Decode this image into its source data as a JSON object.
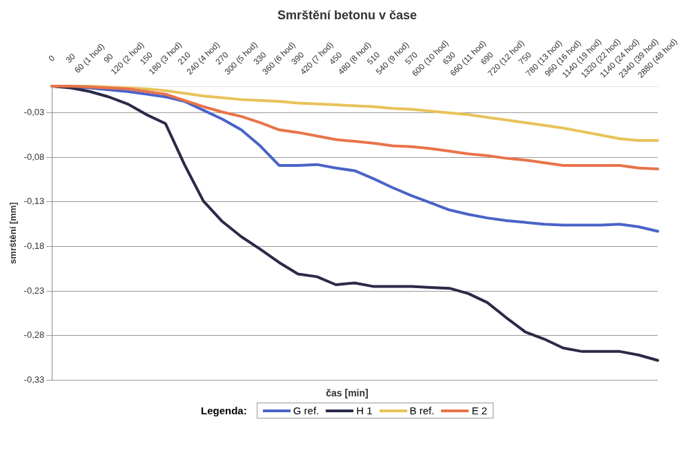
{
  "chart_data": {
    "type": "line",
    "title": "Smrštění betonu v čase",
    "xlabel": "čas [min]",
    "ylabel": "smrštění [mm]",
    "legend_title": "Legenda:",
    "categories": [
      "0",
      "30",
      "60 (1 hod)",
      "90",
      "120 (2 hod)",
      "150",
      "180 (3 hod)",
      "210",
      "240 (4 hod)",
      "270",
      "300 (5 hod)",
      "330",
      "360 (6 hod)",
      "390",
      "420 (7 hod)",
      "450",
      "480 (8 hod)",
      "510",
      "540 (9 hod)",
      "570",
      "600 (10 hod)",
      "630",
      "660 (11 hod)",
      "690",
      "720 (12 hod)",
      "750",
      "780 (13 hod)",
      "960 (16 hod)",
      "1140 (19 hod)",
      "1320 (22 hod)",
      "1140 (24 hod)",
      "2340 (39 hod)",
      "2880 (48 hod)"
    ],
    "series": [
      {
        "name": "G ref.",
        "color": "#4a63c8",
        "values": [
          0,
          -0.001,
          -0.002,
          -0.004,
          -0.006,
          -0.009,
          -0.012,
          -0.017,
          -0.027,
          -0.037,
          -0.049,
          -0.067,
          -0.089,
          -0.089,
          -0.088,
          -0.092,
          -0.095,
          -0.104,
          -0.114,
          -0.123,
          -0.131,
          -0.139,
          -0.144,
          -0.148,
          -0.151,
          -0.153,
          -0.155,
          -0.156,
          -0.156,
          -0.156,
          -0.155,
          -0.158,
          -0.163
        ]
      },
      {
        "name": "H 1",
        "color": "#2a2a48",
        "values": [
          0,
          -0.002,
          -0.006,
          -0.012,
          -0.02,
          -0.032,
          -0.042,
          -0.088,
          -0.129,
          -0.152,
          -0.169,
          -0.183,
          -0.198,
          -0.211,
          -0.214,
          -0.223,
          -0.221,
          -0.225,
          -0.225,
          -0.225,
          -0.226,
          -0.227,
          -0.233,
          -0.243,
          -0.26,
          -0.276,
          -0.284,
          -0.294,
          -0.298,
          -0.298,
          -0.298,
          -0.302,
          -0.308
        ]
      },
      {
        "name": "B ref.",
        "color": "#e8c25a",
        "values": [
          0,
          0,
          0,
          -0.001,
          -0.002,
          -0.003,
          -0.005,
          -0.008,
          -0.011,
          -0.013,
          -0.015,
          -0.016,
          -0.017,
          -0.019,
          -0.02,
          -0.021,
          -0.022,
          -0.023,
          -0.025,
          -0.026,
          -0.028,
          -0.03,
          -0.032,
          -0.035,
          -0.038,
          -0.041,
          -0.044,
          -0.047,
          -0.051,
          -0.055,
          -0.059,
          -0.061,
          -0.061
        ]
      },
      {
        "name": "E 2",
        "color": "#e8734a",
        "values": [
          0,
          0,
          -0.001,
          -0.002,
          -0.003,
          -0.006,
          -0.009,
          -0.016,
          -0.023,
          -0.029,
          -0.034,
          -0.041,
          -0.049,
          -0.052,
          -0.056,
          -0.06,
          -0.062,
          -0.064,
          -0.067,
          -0.068,
          -0.07,
          -0.073,
          -0.076,
          -0.078,
          -0.081,
          -0.083,
          -0.086,
          -0.089,
          -0.089,
          -0.089,
          -0.089,
          -0.092,
          -0.093
        ]
      }
    ],
    "ylim": [
      -0.33,
      0
    ],
    "yticks": [
      {
        "value": -0.03,
        "label": "-0,03"
      },
      {
        "value": -0.08,
        "label": "-0,08"
      },
      {
        "value": -0.13,
        "label": "-0,13"
      },
      {
        "value": -0.18,
        "label": "-0,18"
      },
      {
        "value": -0.23,
        "label": "-0,23"
      },
      {
        "value": -0.28,
        "label": "-0,28"
      },
      {
        "value": -0.33,
        "label": "-0,33"
      }
    ],
    "grid": "y",
    "legend": "bottom",
    "marker": "none",
    "line_style": "solid"
  }
}
